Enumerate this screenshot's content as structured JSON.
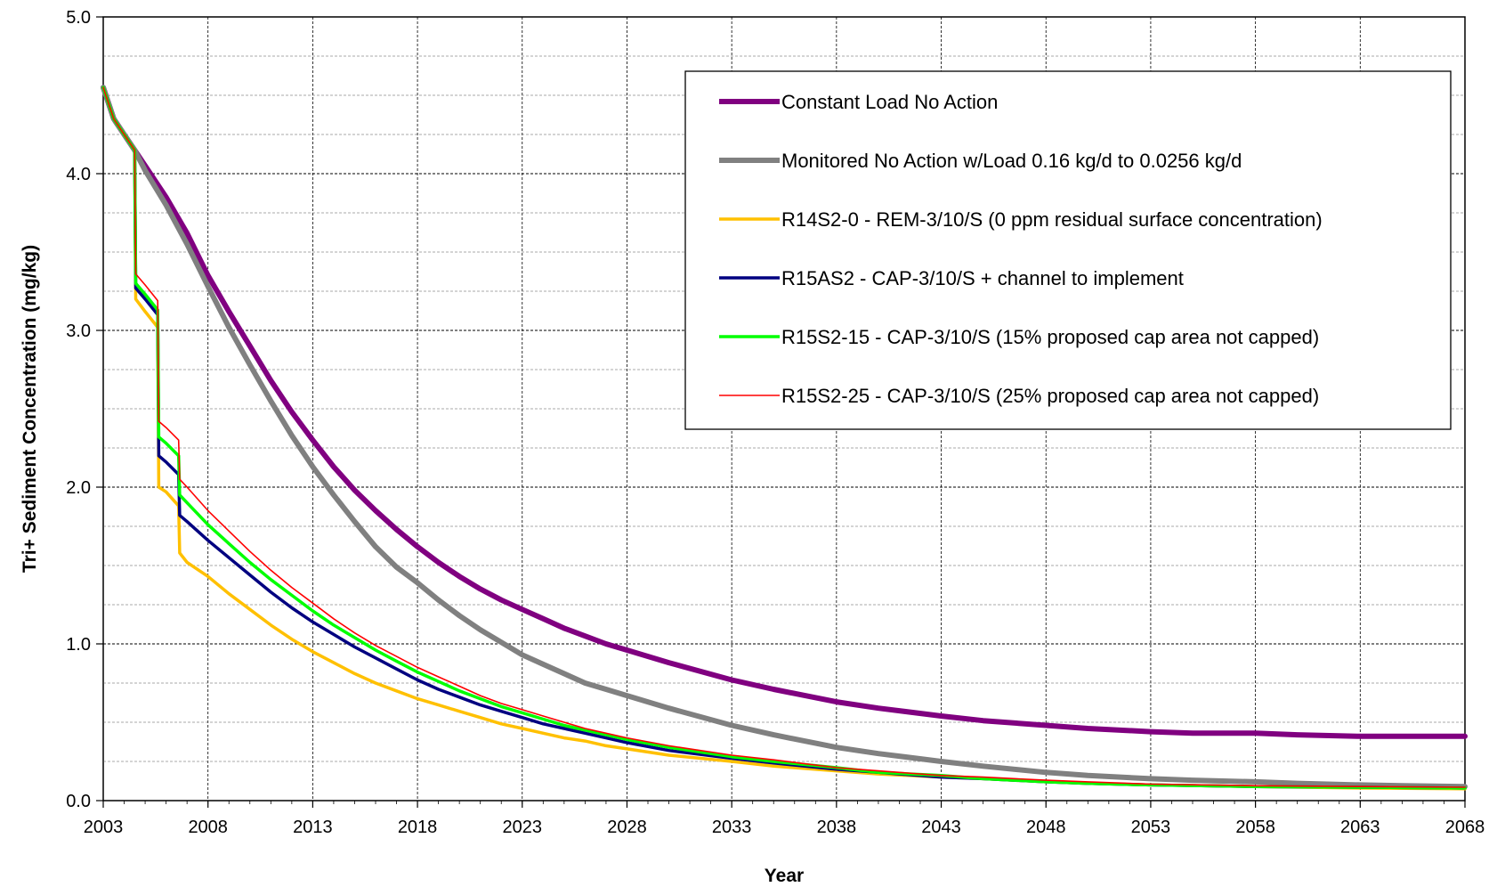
{
  "chart_data": {
    "type": "line",
    "title": "",
    "xlabel": "Year",
    "ylabel": "Tri+ Sediment Concentration (mg/kg)",
    "xlim": [
      2003,
      2068
    ],
    "ylim": [
      0,
      5
    ],
    "x_ticks": [
      2003,
      2008,
      2013,
      2018,
      2023,
      2028,
      2033,
      2038,
      2043,
      2048,
      2053,
      2058,
      2063,
      2068
    ],
    "y_ticks": [
      0,
      1,
      2,
      3,
      4,
      5
    ],
    "x_tick_labels": [
      "2003",
      "2008",
      "2013",
      "2018",
      "2023",
      "2028",
      "2033",
      "2038",
      "2043",
      "2048",
      "2053",
      "2058",
      "2063",
      "2068"
    ],
    "y_tick_labels": [
      "0.0",
      "1.0",
      "2.0",
      "3.0",
      "4.0",
      "5.0"
    ],
    "grid": true,
    "legend_position": "top-right",
    "series": [
      {
        "name": "Constant Load No Action",
        "color": "#800080",
        "points": [
          [
            2003,
            4.55
          ],
          [
            2003.5,
            4.35
          ],
          [
            2004,
            4.25
          ],
          [
            2004.5,
            4.15
          ],
          [
            2005,
            4.05
          ],
          [
            2006,
            3.85
          ],
          [
            2007,
            3.62
          ],
          [
            2008,
            3.35
          ],
          [
            2009,
            3.12
          ],
          [
            2010,
            2.9
          ],
          [
            2011,
            2.68
          ],
          [
            2012,
            2.48
          ],
          [
            2013,
            2.3
          ],
          [
            2014,
            2.13
          ],
          [
            2015,
            1.98
          ],
          [
            2016,
            1.85
          ],
          [
            2017,
            1.73
          ],
          [
            2018,
            1.62
          ],
          [
            2019,
            1.52
          ],
          [
            2020,
            1.43
          ],
          [
            2021,
            1.35
          ],
          [
            2022,
            1.28
          ],
          [
            2023,
            1.22
          ],
          [
            2024,
            1.16
          ],
          [
            2025,
            1.1
          ],
          [
            2026,
            1.05
          ],
          [
            2027,
            1.0
          ],
          [
            2028,
            0.96
          ],
          [
            2030,
            0.88
          ],
          [
            2033,
            0.77
          ],
          [
            2035,
            0.71
          ],
          [
            2038,
            0.63
          ],
          [
            2040,
            0.59
          ],
          [
            2043,
            0.54
          ],
          [
            2045,
            0.51
          ],
          [
            2048,
            0.48
          ],
          [
            2050,
            0.46
          ],
          [
            2053,
            0.44
          ],
          [
            2055,
            0.43
          ],
          [
            2058,
            0.43
          ],
          [
            2060,
            0.42
          ],
          [
            2063,
            0.41
          ],
          [
            2065,
            0.41
          ],
          [
            2068,
            0.41
          ]
        ]
      },
      {
        "name": "Monitored No Action w/Load 0.16 kg/d to 0.0256 kg/d",
        "color": "#808080",
        "points": [
          [
            2003,
            4.55
          ],
          [
            2003.5,
            4.35
          ],
          [
            2004,
            4.25
          ],
          [
            2004.5,
            4.15
          ],
          [
            2005,
            4.02
          ],
          [
            2006,
            3.8
          ],
          [
            2007,
            3.55
          ],
          [
            2008,
            3.28
          ],
          [
            2009,
            3.02
          ],
          [
            2010,
            2.78
          ],
          [
            2011,
            2.55
          ],
          [
            2012,
            2.33
          ],
          [
            2013,
            2.13
          ],
          [
            2014,
            1.95
          ],
          [
            2015,
            1.78
          ],
          [
            2016,
            1.62
          ],
          [
            2017,
            1.49
          ],
          [
            2018,
            1.39
          ],
          [
            2019,
            1.28
          ],
          [
            2020,
            1.18
          ],
          [
            2021,
            1.09
          ],
          [
            2022,
            1.01
          ],
          [
            2023,
            0.93
          ],
          [
            2024,
            0.87
          ],
          [
            2025,
            0.81
          ],
          [
            2026,
            0.75
          ],
          [
            2027,
            0.71
          ],
          [
            2028,
            0.67
          ],
          [
            2030,
            0.59
          ],
          [
            2033,
            0.48
          ],
          [
            2035,
            0.42
          ],
          [
            2038,
            0.34
          ],
          [
            2040,
            0.3
          ],
          [
            2043,
            0.25
          ],
          [
            2045,
            0.22
          ],
          [
            2048,
            0.18
          ],
          [
            2050,
            0.16
          ],
          [
            2053,
            0.14
          ],
          [
            2055,
            0.13
          ],
          [
            2058,
            0.12
          ],
          [
            2060,
            0.11
          ],
          [
            2063,
            0.1
          ],
          [
            2065,
            0.095
          ],
          [
            2068,
            0.09
          ]
        ]
      },
      {
        "name": "R14S2-0 - REM-3/10/S (0 ppm residual surface concentration)",
        "color": "#ffc000",
        "points": [
          [
            2003,
            4.55
          ],
          [
            2003.5,
            4.35
          ],
          [
            2004,
            4.25
          ],
          [
            2004.5,
            4.15
          ],
          [
            2004.55,
            3.2
          ],
          [
            2005,
            3.12
          ],
          [
            2005.6,
            3.02
          ],
          [
            2005.65,
            2.0
          ],
          [
            2006,
            1.97
          ],
          [
            2006.6,
            1.88
          ],
          [
            2006.65,
            1.58
          ],
          [
            2007,
            1.52
          ],
          [
            2008,
            1.43
          ],
          [
            2009,
            1.32
          ],
          [
            2010,
            1.22
          ],
          [
            2011,
            1.12
          ],
          [
            2012,
            1.03
          ],
          [
            2013,
            0.95
          ],
          [
            2014,
            0.88
          ],
          [
            2015,
            0.81
          ],
          [
            2016,
            0.75
          ],
          [
            2017,
            0.7
          ],
          [
            2018,
            0.65
          ],
          [
            2019,
            0.61
          ],
          [
            2020,
            0.57
          ],
          [
            2021,
            0.53
          ],
          [
            2022,
            0.49
          ],
          [
            2023,
            0.46
          ],
          [
            2024,
            0.43
          ],
          [
            2025,
            0.4
          ],
          [
            2026,
            0.38
          ],
          [
            2027,
            0.35
          ],
          [
            2028,
            0.33
          ],
          [
            2030,
            0.29
          ],
          [
            2033,
            0.25
          ],
          [
            2035,
            0.22
          ],
          [
            2038,
            0.19
          ],
          [
            2040,
            0.17
          ],
          [
            2043,
            0.15
          ],
          [
            2045,
            0.14
          ],
          [
            2048,
            0.12
          ],
          [
            2050,
            0.11
          ],
          [
            2053,
            0.1
          ],
          [
            2058,
            0.09
          ],
          [
            2063,
            0.08
          ],
          [
            2068,
            0.075
          ]
        ]
      },
      {
        "name": "R15AS2 - CAP-3/10/S + channel to implement",
        "color": "#000080",
        "points": [
          [
            2003,
            4.55
          ],
          [
            2003.5,
            4.35
          ],
          [
            2004,
            4.25
          ],
          [
            2004.5,
            4.15
          ],
          [
            2004.55,
            3.27
          ],
          [
            2005,
            3.2
          ],
          [
            2005.6,
            3.1
          ],
          [
            2005.65,
            2.2
          ],
          [
            2006,
            2.16
          ],
          [
            2006.6,
            2.08
          ],
          [
            2006.65,
            1.82
          ],
          [
            2007,
            1.78
          ],
          [
            2008,
            1.66
          ],
          [
            2009,
            1.55
          ],
          [
            2010,
            1.44
          ],
          [
            2011,
            1.33
          ],
          [
            2012,
            1.23
          ],
          [
            2013,
            1.14
          ],
          [
            2014,
            1.06
          ],
          [
            2015,
            0.98
          ],
          [
            2016,
            0.91
          ],
          [
            2017,
            0.84
          ],
          [
            2018,
            0.77
          ],
          [
            2019,
            0.71
          ],
          [
            2020,
            0.66
          ],
          [
            2021,
            0.61
          ],
          [
            2022,
            0.57
          ],
          [
            2023,
            0.53
          ],
          [
            2024,
            0.49
          ],
          [
            2025,
            0.46
          ],
          [
            2026,
            0.43
          ],
          [
            2027,
            0.4
          ],
          [
            2028,
            0.37
          ],
          [
            2030,
            0.32
          ],
          [
            2033,
            0.27
          ],
          [
            2035,
            0.24
          ],
          [
            2038,
            0.2
          ],
          [
            2040,
            0.18
          ],
          [
            2043,
            0.15
          ],
          [
            2045,
            0.14
          ],
          [
            2048,
            0.12
          ],
          [
            2050,
            0.11
          ],
          [
            2053,
            0.1
          ],
          [
            2058,
            0.09
          ],
          [
            2063,
            0.085
          ],
          [
            2068,
            0.08
          ]
        ]
      },
      {
        "name": "R15S2-15 - CAP-3/10/S (15% proposed cap area not capped)",
        "color": "#00ff00",
        "points": [
          [
            2003,
            4.55
          ],
          [
            2003.5,
            4.35
          ],
          [
            2004,
            4.25
          ],
          [
            2004.5,
            4.15
          ],
          [
            2004.55,
            3.3
          ],
          [
            2005,
            3.23
          ],
          [
            2005.6,
            3.13
          ],
          [
            2005.65,
            2.32
          ],
          [
            2006,
            2.28
          ],
          [
            2006.6,
            2.2
          ],
          [
            2006.65,
            1.95
          ],
          [
            2007,
            1.9
          ],
          [
            2008,
            1.76
          ],
          [
            2009,
            1.64
          ],
          [
            2010,
            1.52
          ],
          [
            2011,
            1.41
          ],
          [
            2012,
            1.31
          ],
          [
            2013,
            1.21
          ],
          [
            2014,
            1.12
          ],
          [
            2015,
            1.04
          ],
          [
            2016,
            0.96
          ],
          [
            2017,
            0.89
          ],
          [
            2018,
            0.82
          ],
          [
            2019,
            0.76
          ],
          [
            2020,
            0.7
          ],
          [
            2021,
            0.65
          ],
          [
            2022,
            0.6
          ],
          [
            2023,
            0.56
          ],
          [
            2024,
            0.52
          ],
          [
            2025,
            0.48
          ],
          [
            2026,
            0.45
          ],
          [
            2027,
            0.42
          ],
          [
            2028,
            0.39
          ],
          [
            2030,
            0.34
          ],
          [
            2033,
            0.28
          ],
          [
            2035,
            0.25
          ],
          [
            2038,
            0.21
          ],
          [
            2040,
            0.18
          ],
          [
            2043,
            0.16
          ],
          [
            2045,
            0.14
          ],
          [
            2048,
            0.12
          ],
          [
            2050,
            0.11
          ],
          [
            2053,
            0.1
          ],
          [
            2058,
            0.09
          ],
          [
            2063,
            0.085
          ],
          [
            2068,
            0.08
          ]
        ]
      },
      {
        "name": "R15S2-25 - CAP-3/10/S (25% proposed cap area not capped)",
        "color": "#ff0000",
        "points": [
          [
            2003,
            4.55
          ],
          [
            2003.5,
            4.35
          ],
          [
            2004,
            4.25
          ],
          [
            2004.5,
            4.15
          ],
          [
            2004.55,
            3.36
          ],
          [
            2005,
            3.29
          ],
          [
            2005.6,
            3.19
          ],
          [
            2005.65,
            2.42
          ],
          [
            2006,
            2.38
          ],
          [
            2006.6,
            2.3
          ],
          [
            2006.65,
            2.05
          ],
          [
            2007,
            2.0
          ],
          [
            2008,
            1.85
          ],
          [
            2009,
            1.72
          ],
          [
            2010,
            1.59
          ],
          [
            2011,
            1.47
          ],
          [
            2012,
            1.36
          ],
          [
            2013,
            1.26
          ],
          [
            2014,
            1.16
          ],
          [
            2015,
            1.07
          ],
          [
            2016,
            0.99
          ],
          [
            2017,
            0.92
          ],
          [
            2018,
            0.85
          ],
          [
            2019,
            0.79
          ],
          [
            2020,
            0.73
          ],
          [
            2021,
            0.67
          ],
          [
            2022,
            0.62
          ],
          [
            2023,
            0.58
          ],
          [
            2024,
            0.54
          ],
          [
            2025,
            0.5
          ],
          [
            2026,
            0.46
          ],
          [
            2027,
            0.43
          ],
          [
            2028,
            0.4
          ],
          [
            2030,
            0.35
          ],
          [
            2033,
            0.29
          ],
          [
            2035,
            0.26
          ],
          [
            2038,
            0.21
          ],
          [
            2040,
            0.19
          ],
          [
            2043,
            0.16
          ],
          [
            2045,
            0.15
          ],
          [
            2048,
            0.13
          ],
          [
            2050,
            0.12
          ],
          [
            2053,
            0.105
          ],
          [
            2058,
            0.095
          ],
          [
            2063,
            0.09
          ],
          [
            2068,
            0.085
          ]
        ]
      }
    ]
  }
}
